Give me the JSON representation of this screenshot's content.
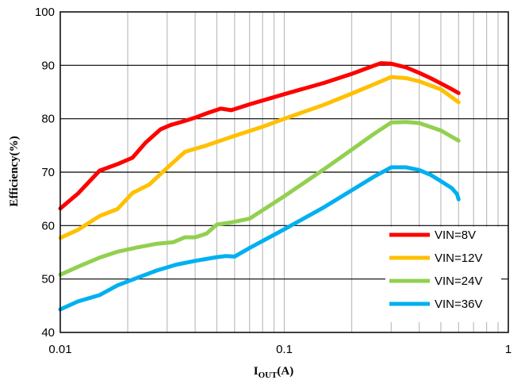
{
  "chart_data": {
    "type": "line",
    "xlabel": {
      "main": "I",
      "sub": "OUT",
      "tail": "(A)"
    },
    "ylabel": "Efficiency(%)",
    "xscale": "log",
    "xlim": [
      0.01,
      1
    ],
    "ylim": [
      40,
      100
    ],
    "x_ticks": [
      {
        "value": 0.01,
        "label": "0.01"
      },
      {
        "value": 0.1,
        "label": "0.1"
      },
      {
        "value": 1,
        "label": "1"
      }
    ],
    "y_ticks": [
      {
        "value": 40,
        "label": "40"
      },
      {
        "value": 50,
        "label": "50"
      },
      {
        "value": 60,
        "label": "60"
      },
      {
        "value": 70,
        "label": "70"
      },
      {
        "value": 80,
        "label": "80"
      },
      {
        "value": 90,
        "label": "90"
      },
      {
        "value": 100,
        "label": "100"
      }
    ],
    "grid": {
      "x_major": true,
      "x_minor": true,
      "y_major": true
    },
    "legend_position": "bottom-right",
    "series": [
      {
        "name": "VIN=8V",
        "color": "#ff0000",
        "points": [
          [
            0.01,
            63.2
          ],
          [
            0.012,
            66
          ],
          [
            0.015,
            70.3
          ],
          [
            0.018,
            71.5
          ],
          [
            0.021,
            72.7
          ],
          [
            0.024,
            75.5
          ],
          [
            0.028,
            78
          ],
          [
            0.031,
            78.8
          ],
          [
            0.036,
            79.6
          ],
          [
            0.04,
            80.2
          ],
          [
            0.045,
            81
          ],
          [
            0.052,
            81.9
          ],
          [
            0.058,
            81.6
          ],
          [
            0.07,
            82.7
          ],
          [
            0.1,
            84.6
          ],
          [
            0.15,
            86.7
          ],
          [
            0.2,
            88.4
          ],
          [
            0.25,
            89.9
          ],
          [
            0.27,
            90.4
          ],
          [
            0.3,
            90.3
          ],
          [
            0.35,
            89.6
          ],
          [
            0.4,
            88.6
          ],
          [
            0.45,
            87.6
          ],
          [
            0.5,
            86.6
          ],
          [
            0.55,
            85.7
          ],
          [
            0.6,
            84.8
          ]
        ]
      },
      {
        "name": "VIN=12V",
        "color": "#ffc000",
        "points": [
          [
            0.01,
            57.7
          ],
          [
            0.012,
            59.2
          ],
          [
            0.015,
            61.8
          ],
          [
            0.018,
            63.1
          ],
          [
            0.021,
            66.1
          ],
          [
            0.025,
            67.7
          ],
          [
            0.03,
            70.8
          ],
          [
            0.036,
            73.8
          ],
          [
            0.045,
            75
          ],
          [
            0.06,
            76.8
          ],
          [
            0.08,
            78.5
          ],
          [
            0.1,
            80
          ],
          [
            0.15,
            82.6
          ],
          [
            0.2,
            84.7
          ],
          [
            0.25,
            86.4
          ],
          [
            0.3,
            87.8
          ],
          [
            0.35,
            87.6
          ],
          [
            0.4,
            87
          ],
          [
            0.5,
            85.5
          ],
          [
            0.6,
            83.1
          ]
        ]
      },
      {
        "name": "VIN=24V",
        "color": "#92d050",
        "points": [
          [
            0.01,
            50.8
          ],
          [
            0.012,
            52.3
          ],
          [
            0.015,
            54
          ],
          [
            0.018,
            55.1
          ],
          [
            0.022,
            55.9
          ],
          [
            0.027,
            56.6
          ],
          [
            0.032,
            56.9
          ],
          [
            0.036,
            57.8
          ],
          [
            0.04,
            57.8
          ],
          [
            0.045,
            58.5
          ],
          [
            0.05,
            60.2
          ],
          [
            0.058,
            60.6
          ],
          [
            0.07,
            61.3
          ],
          [
            0.1,
            65.5
          ],
          [
            0.15,
            70.5
          ],
          [
            0.2,
            74.2
          ],
          [
            0.25,
            77.1
          ],
          [
            0.3,
            79.3
          ],
          [
            0.35,
            79.4
          ],
          [
            0.4,
            79.2
          ],
          [
            0.5,
            77.8
          ],
          [
            0.6,
            75.9
          ]
        ]
      },
      {
        "name": "VIN=36V",
        "color": "#00b0f0",
        "points": [
          [
            0.01,
            44.3
          ],
          [
            0.012,
            45.8
          ],
          [
            0.015,
            47
          ],
          [
            0.018,
            48.8
          ],
          [
            0.022,
            50.2
          ],
          [
            0.027,
            51.6
          ],
          [
            0.033,
            52.7
          ],
          [
            0.04,
            53.4
          ],
          [
            0.05,
            54.1
          ],
          [
            0.055,
            54.3
          ],
          [
            0.06,
            54.2
          ],
          [
            0.07,
            55.8
          ],
          [
            0.1,
            59.3
          ],
          [
            0.15,
            63.4
          ],
          [
            0.2,
            66.6
          ],
          [
            0.25,
            69.1
          ],
          [
            0.3,
            70.9
          ],
          [
            0.35,
            70.9
          ],
          [
            0.4,
            70.4
          ],
          [
            0.45,
            69.5
          ],
          [
            0.5,
            68.3
          ],
          [
            0.56,
            67
          ],
          [
            0.59,
            65.9
          ],
          [
            0.6,
            64.9
          ]
        ]
      }
    ]
  }
}
